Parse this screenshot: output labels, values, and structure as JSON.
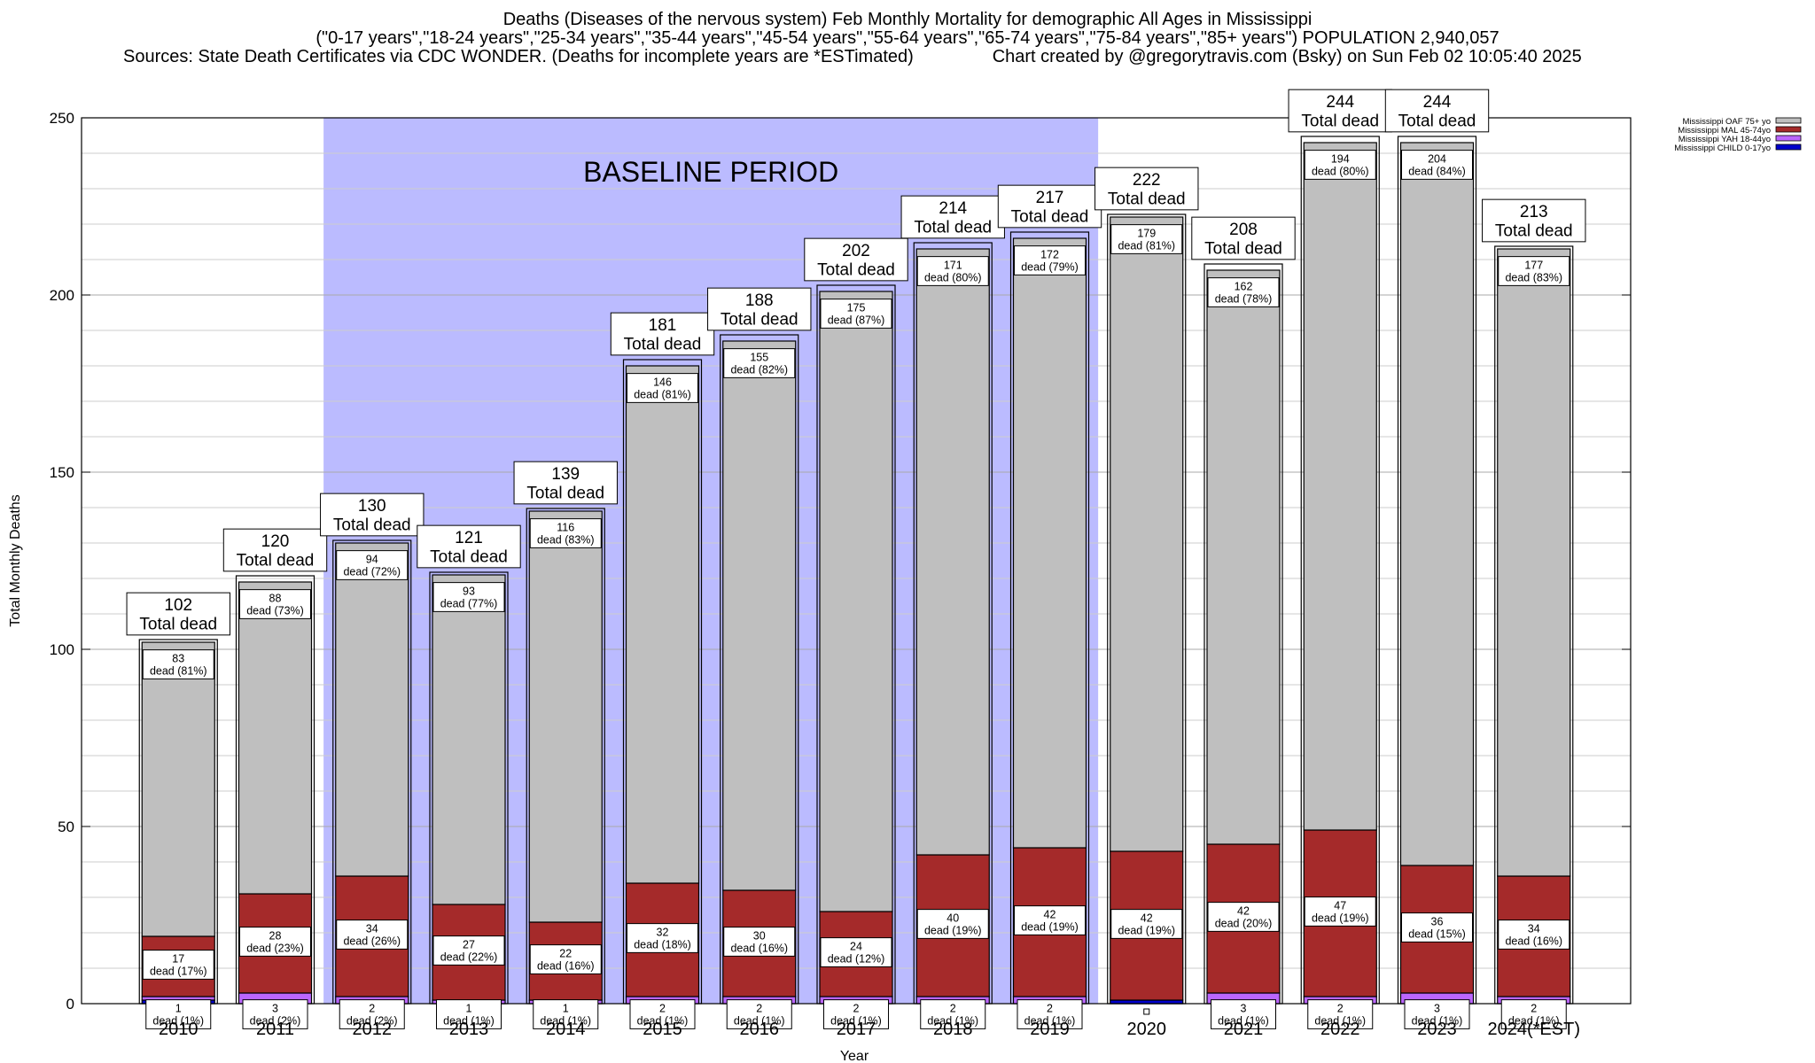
{
  "header": {
    "title": "Deaths (Diseases of the nervous system) Feb Monthly Mortality for demographic All Ages in Mississippi",
    "subtitle": "(\"0-17 years\",\"18-24 years\",\"25-34 years\",\"35-44 years\",\"45-54 years\",\"55-64 years\",\"65-74 years\",\"75-84 years\",\"85+ years\") POPULATION 2,940,057",
    "sources": "Sources: State Death Certificates via CDC WONDER. (Deaths for incomplete years are *ESTimated)",
    "credit": "Chart created by @gregorytravis.com (Bsky) on Sun Feb 02 10:05:40 2025"
  },
  "colors": {
    "child": "#0000cc",
    "yah": "#bb66ff",
    "mal": "#a52a2a",
    "oaf": "#bfbfbf",
    "baseline": "#bbbbff"
  },
  "chart_data": {
    "type": "bar",
    "stacked": true,
    "xlabel": "Year",
    "ylabel": "Total Monthly Deaths",
    "ylim": [
      0,
      250
    ],
    "yticks": [
      0,
      50,
      100,
      150,
      200,
      250
    ],
    "grid": true,
    "legend_position": "top-right",
    "baseline_label": "BASELINE PERIOD",
    "baseline_range": [
      "2012",
      "2019"
    ],
    "total_label": "Total dead",
    "segment_label": "dead",
    "categories": [
      "2010",
      "2011",
      "2012",
      "2013",
      "2014",
      "2015",
      "2016",
      "2017",
      "2018",
      "2019",
      "2020",
      "2021",
      "2022",
      "2023",
      "2024(*EST)"
    ],
    "totals": [
      102,
      120,
      130,
      121,
      139,
      181,
      188,
      202,
      214,
      217,
      222,
      208,
      244,
      244,
      213
    ],
    "series": [
      {
        "name": "Mississippi CHILD 0-17yo",
        "key": "child",
        "values": [
          1,
          0,
          0,
          0,
          0,
          0,
          0,
          0,
          0,
          0,
          1,
          0,
          0,
          0,
          0
        ],
        "labels": [
          null,
          null,
          null,
          null,
          null,
          null,
          null,
          null,
          null,
          null,
          null,
          null,
          null,
          null,
          null
        ]
      },
      {
        "name": "Mississippi YAH 18-44yo",
        "key": "yah",
        "values": [
          1,
          3,
          2,
          1,
          1,
          2,
          2,
          2,
          2,
          2,
          0,
          3,
          2,
          3,
          2
        ],
        "labels": [
          "1 dead (1%)",
          "3 dead (2%)",
          "2 dead (2%)",
          "1 dead (1%)",
          "1 dead (1%)",
          "2 dead (1%)",
          "2 dead (1%)",
          "2 dead (1%)",
          "2 dead (1%)",
          "2 dead (1%)",
          null,
          "3 dead (1%)",
          "2 dead (1%)",
          "3 dead (1%)",
          "2 dead (1%)"
        ]
      },
      {
        "name": "Mississippi MAL 45-74yo",
        "key": "mal",
        "values": [
          17,
          28,
          34,
          27,
          22,
          32,
          30,
          24,
          40,
          42,
          42,
          42,
          47,
          36,
          34
        ],
        "labels": [
          "17 dead (17%)",
          "28 dead (23%)",
          "34 dead (26%)",
          "27 dead (22%)",
          "22 dead (16%)",
          "32 dead (18%)",
          "30 dead (16%)",
          "24 dead (12%)",
          "40 dead (19%)",
          "42 dead (19%)",
          "42 dead (19%)",
          "42 dead (20%)",
          "47 dead (19%)",
          "36 dead (15%)",
          "34 dead (16%)"
        ]
      },
      {
        "name": "Mississippi OAF 75+ yo",
        "key": "oaf",
        "values": [
          83,
          88,
          94,
          93,
          116,
          146,
          155,
          175,
          171,
          172,
          179,
          162,
          194,
          204,
          177
        ],
        "labels": [
          "83 dead (81%)",
          "88 dead (73%)",
          "94 dead (72%)",
          "93 dead (77%)",
          "116 dead (83%)",
          "146 dead (81%)",
          "155 dead (82%)",
          "175 dead (87%)",
          "171 dead (80%)",
          "172 dead (79%)",
          "179 dead (81%)",
          "162 dead (78%)",
          "194 dead (80%)",
          "204 dead (84%)",
          "177 dead (83%)"
        ]
      }
    ]
  }
}
